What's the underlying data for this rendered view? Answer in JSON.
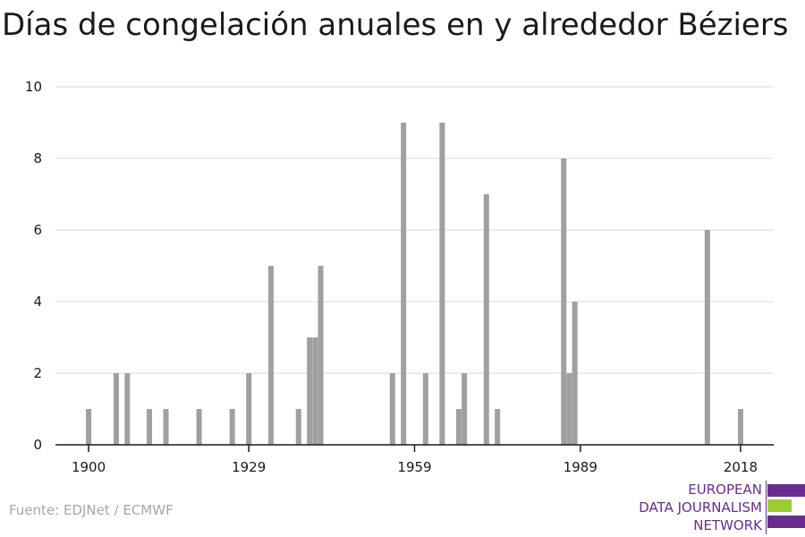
{
  "title": "Días de congelación anuales en y alrededor Béziers",
  "source": "Fuente: EDJNet / ECMWF",
  "logo": {
    "lines": [
      "EUROPEAN",
      "DATA JOURNALISM",
      "NETWORK"
    ]
  },
  "colors": {
    "bar": "#a0a0a0",
    "grid": "#d9d9d9",
    "axis": "#1a1a1a",
    "logo_purple": "#6a2c8e",
    "logo_green": "#9acd32"
  },
  "chart_data": {
    "type": "bar",
    "title": "Días de congelación anuales en y alrededor Béziers",
    "xlabel": "",
    "ylabel": "",
    "xlim": [
      1894,
      2024
    ],
    "ylim": [
      0,
      10
    ],
    "yticks": [
      0,
      2,
      4,
      6,
      8,
      10
    ],
    "xticks": [
      1900,
      1929,
      1959,
      1989,
      2018
    ],
    "grid": true,
    "x": [
      1900,
      1905,
      1907,
      1911,
      1914,
      1920,
      1926,
      1929,
      1933,
      1938,
      1940,
      1941,
      1942,
      1955,
      1957,
      1961,
      1964,
      1967,
      1968,
      1972,
      1974,
      1986,
      1987,
      1988,
      2012,
      2018
    ],
    "values": [
      1,
      2,
      2,
      1,
      1,
      1,
      1,
      2,
      5,
      1,
      3,
      3,
      5,
      2,
      9,
      2,
      9,
      1,
      2,
      7,
      1,
      8,
      2,
      4,
      6,
      1
    ]
  }
}
